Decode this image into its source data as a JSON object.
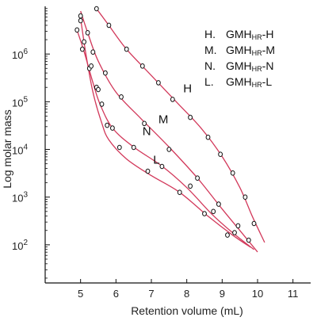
{
  "chart_data": {
    "type": "line",
    "title": "",
    "xlabel": "Retention volume (mL)",
    "ylabel": "Log molar mass",
    "xlim": [
      4.0,
      11.5
    ],
    "ylog10_lim": [
      1.2,
      7.0
    ],
    "x_ticks": [
      5,
      6,
      7,
      8,
      9,
      10,
      11
    ],
    "y_ticks": [
      {
        "base": "10",
        "exp": "2",
        "log10": 2
      },
      {
        "base": "10",
        "exp": "3",
        "log10": 3
      },
      {
        "base": "10",
        "exp": "4",
        "log10": 4
      },
      {
        "base": "10",
        "exp": "5",
        "log10": 5
      },
      {
        "base": "10",
        "exp": "6",
        "log10": 6
      }
    ],
    "curve_color": "#d2385a",
    "legend": [
      {
        "key": "H.",
        "prefix": "GMH",
        "sub": "HR",
        "suffix": "-H"
      },
      {
        "key": "M.",
        "prefix": "GMH",
        "sub": "HR",
        "suffix": "-M"
      },
      {
        "key": "N.",
        "prefix": "GMH",
        "sub": "HR",
        "suffix": "-N"
      },
      {
        "key": "L.",
        "prefix": "GMH",
        "sub": "HR",
        "suffix": "-L"
      }
    ],
    "series": [
      {
        "name": "H",
        "label": "H",
        "label_at": [
          7.9,
          5.2
        ],
        "curve_log10": [
          [
            5.45,
            6.95
          ],
          [
            5.8,
            6.6
          ],
          [
            6.3,
            6.1
          ],
          [
            7.0,
            5.55
          ],
          [
            7.7,
            5.0
          ],
          [
            8.4,
            4.45
          ],
          [
            9.0,
            3.85
          ],
          [
            9.5,
            3.2
          ],
          [
            9.85,
            2.6
          ],
          [
            10.2,
            2.05
          ]
        ],
        "points": [
          {
            "x": 5.45,
            "y": 8900000
          },
          {
            "x": 5.8,
            "y": 4000000
          },
          {
            "x": 6.3,
            "y": 1260000
          },
          {
            "x": 6.75,
            "y": 560000
          },
          {
            "x": 7.2,
            "y": 250000
          },
          {
            "x": 7.6,
            "y": 112000
          },
          {
            "x": 8.1,
            "y": 47000
          },
          {
            "x": 8.6,
            "y": 18000
          },
          {
            "x": 8.95,
            "y": 7900
          },
          {
            "x": 9.3,
            "y": 3200
          },
          {
            "x": 9.65,
            "y": 1000
          },
          {
            "x": 9.9,
            "y": 280
          }
        ]
      },
      {
        "name": "M",
        "label": "M",
        "label_at": [
          7.2,
          4.55
        ],
        "curve_log10": [
          [
            5.0,
            6.9
          ],
          [
            5.2,
            6.45
          ],
          [
            5.5,
            5.85
          ],
          [
            6.0,
            5.2
          ],
          [
            6.7,
            4.65
          ],
          [
            7.5,
            4.05
          ],
          [
            8.3,
            3.4
          ],
          [
            9.0,
            2.75
          ],
          [
            9.5,
            2.3
          ],
          [
            10.0,
            1.85
          ]
        ],
        "points": [
          {
            "x": 5.0,
            "y": 6300000
          },
          {
            "x": 5.2,
            "y": 2800000
          },
          {
            "x": 5.35,
            "y": 1100000
          },
          {
            "x": 5.7,
            "y": 400000
          },
          {
            "x": 6.15,
            "y": 126000
          },
          {
            "x": 6.8,
            "y": 35000
          },
          {
            "x": 7.5,
            "y": 10000
          },
          {
            "x": 8.3,
            "y": 2500
          },
          {
            "x": 8.9,
            "y": 710
          },
          {
            "x": 9.45,
            "y": 250
          }
        ]
      },
      {
        "name": "N",
        "label": "N",
        "label_at": [
          6.75,
          4.3
        ],
        "curve_log10": [
          [
            4.9,
            6.5
          ],
          [
            5.1,
            6.05
          ],
          [
            5.35,
            5.4
          ],
          [
            5.55,
            4.95
          ],
          [
            5.9,
            4.45
          ],
          [
            6.5,
            4.05
          ],
          [
            7.3,
            3.65
          ],
          [
            8.0,
            3.2
          ],
          [
            8.7,
            2.65
          ],
          [
            9.3,
            2.25
          ],
          [
            9.9,
            1.9
          ]
        ],
        "points": [
          {
            "x": 4.9,
            "y": 3200000
          },
          {
            "x": 5.05,
            "y": 1260000
          },
          {
            "x": 5.25,
            "y": 500000
          },
          {
            "x": 5.45,
            "y": 200000
          },
          {
            "x": 5.6,
            "y": 89000
          },
          {
            "x": 5.9,
            "y": 28000
          },
          {
            "x": 6.5,
            "y": 11000
          },
          {
            "x": 7.3,
            "y": 4400
          },
          {
            "x": 8.1,
            "y": 1700
          },
          {
            "x": 8.75,
            "y": 500
          },
          {
            "x": 9.35,
            "y": 180
          }
        ]
      },
      {
        "name": "L",
        "label": "L",
        "label_at": [
          7.05,
          3.7
        ],
        "curve_log10": [
          [
            5.0,
            6.75
          ],
          [
            5.15,
            6.0
          ],
          [
            5.35,
            5.2
          ],
          [
            5.6,
            4.55
          ],
          [
            5.8,
            4.2
          ],
          [
            6.3,
            3.8
          ],
          [
            7.0,
            3.45
          ],
          [
            7.8,
            3.1
          ],
          [
            8.6,
            2.6
          ],
          [
            9.3,
            2.2
          ],
          [
            9.8,
            1.95
          ]
        ],
        "points": [
          {
            "x": 5.0,
            "y": 5000000
          },
          {
            "x": 5.1,
            "y": 1800000
          },
          {
            "x": 5.3,
            "y": 560000
          },
          {
            "x": 5.5,
            "y": 180000
          },
          {
            "x": 5.75,
            "y": 32000
          },
          {
            "x": 6.1,
            "y": 11000
          },
          {
            "x": 6.9,
            "y": 3500
          },
          {
            "x": 7.8,
            "y": 1260
          },
          {
            "x": 8.5,
            "y": 450
          },
          {
            "x": 9.15,
            "y": 160
          },
          {
            "x": 9.75,
            "y": 125
          }
        ]
      }
    ]
  }
}
